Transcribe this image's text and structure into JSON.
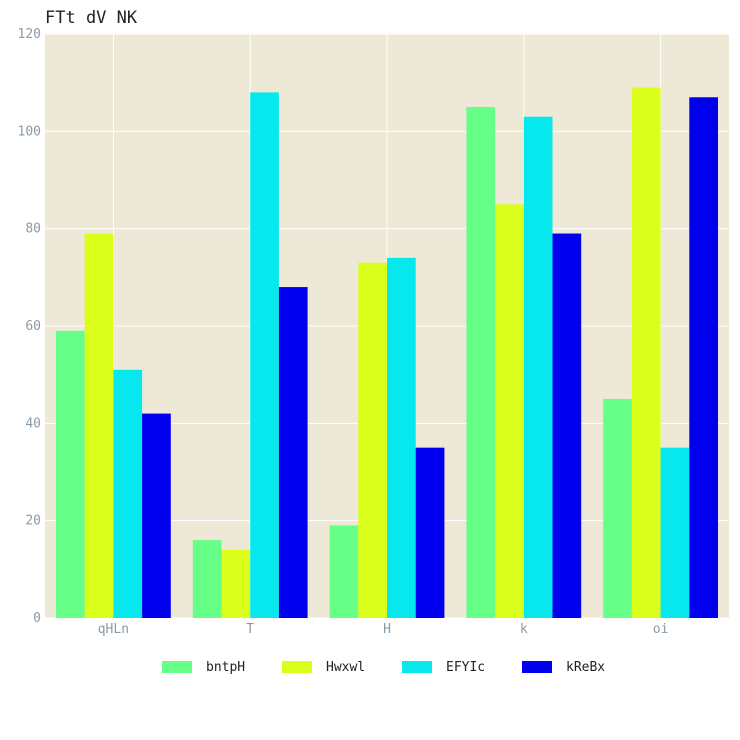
{
  "chart_data": {
    "type": "bar",
    "title": "FTt dV NK",
    "xlabel": "",
    "ylabel": "",
    "categories": [
      "qHLn",
      "T",
      "H",
      "k",
      "oi"
    ],
    "series": [
      {
        "name": "bntpH",
        "color": "#66ff88",
        "values": [
          59,
          16,
          19,
          105,
          45
        ]
      },
      {
        "name": "Hwxwl",
        "color": "#d9ff1a",
        "values": [
          79,
          14,
          73,
          85,
          109
        ]
      },
      {
        "name": "EFYIc",
        "color": "#06e8ee",
        "values": [
          51,
          108,
          74,
          103,
          35
        ]
      },
      {
        "name": "kReBx",
        "color": "#0000ee",
        "values": [
          42,
          68,
          35,
          79,
          107
        ]
      }
    ],
    "ylim": [
      0,
      120
    ],
    "yticks": [
      0,
      20,
      40,
      60,
      80,
      100,
      120
    ],
    "grid": true,
    "legend_position": "bottom",
    "background_color": "#eee8d6",
    "grid_color": "#ffffff"
  }
}
